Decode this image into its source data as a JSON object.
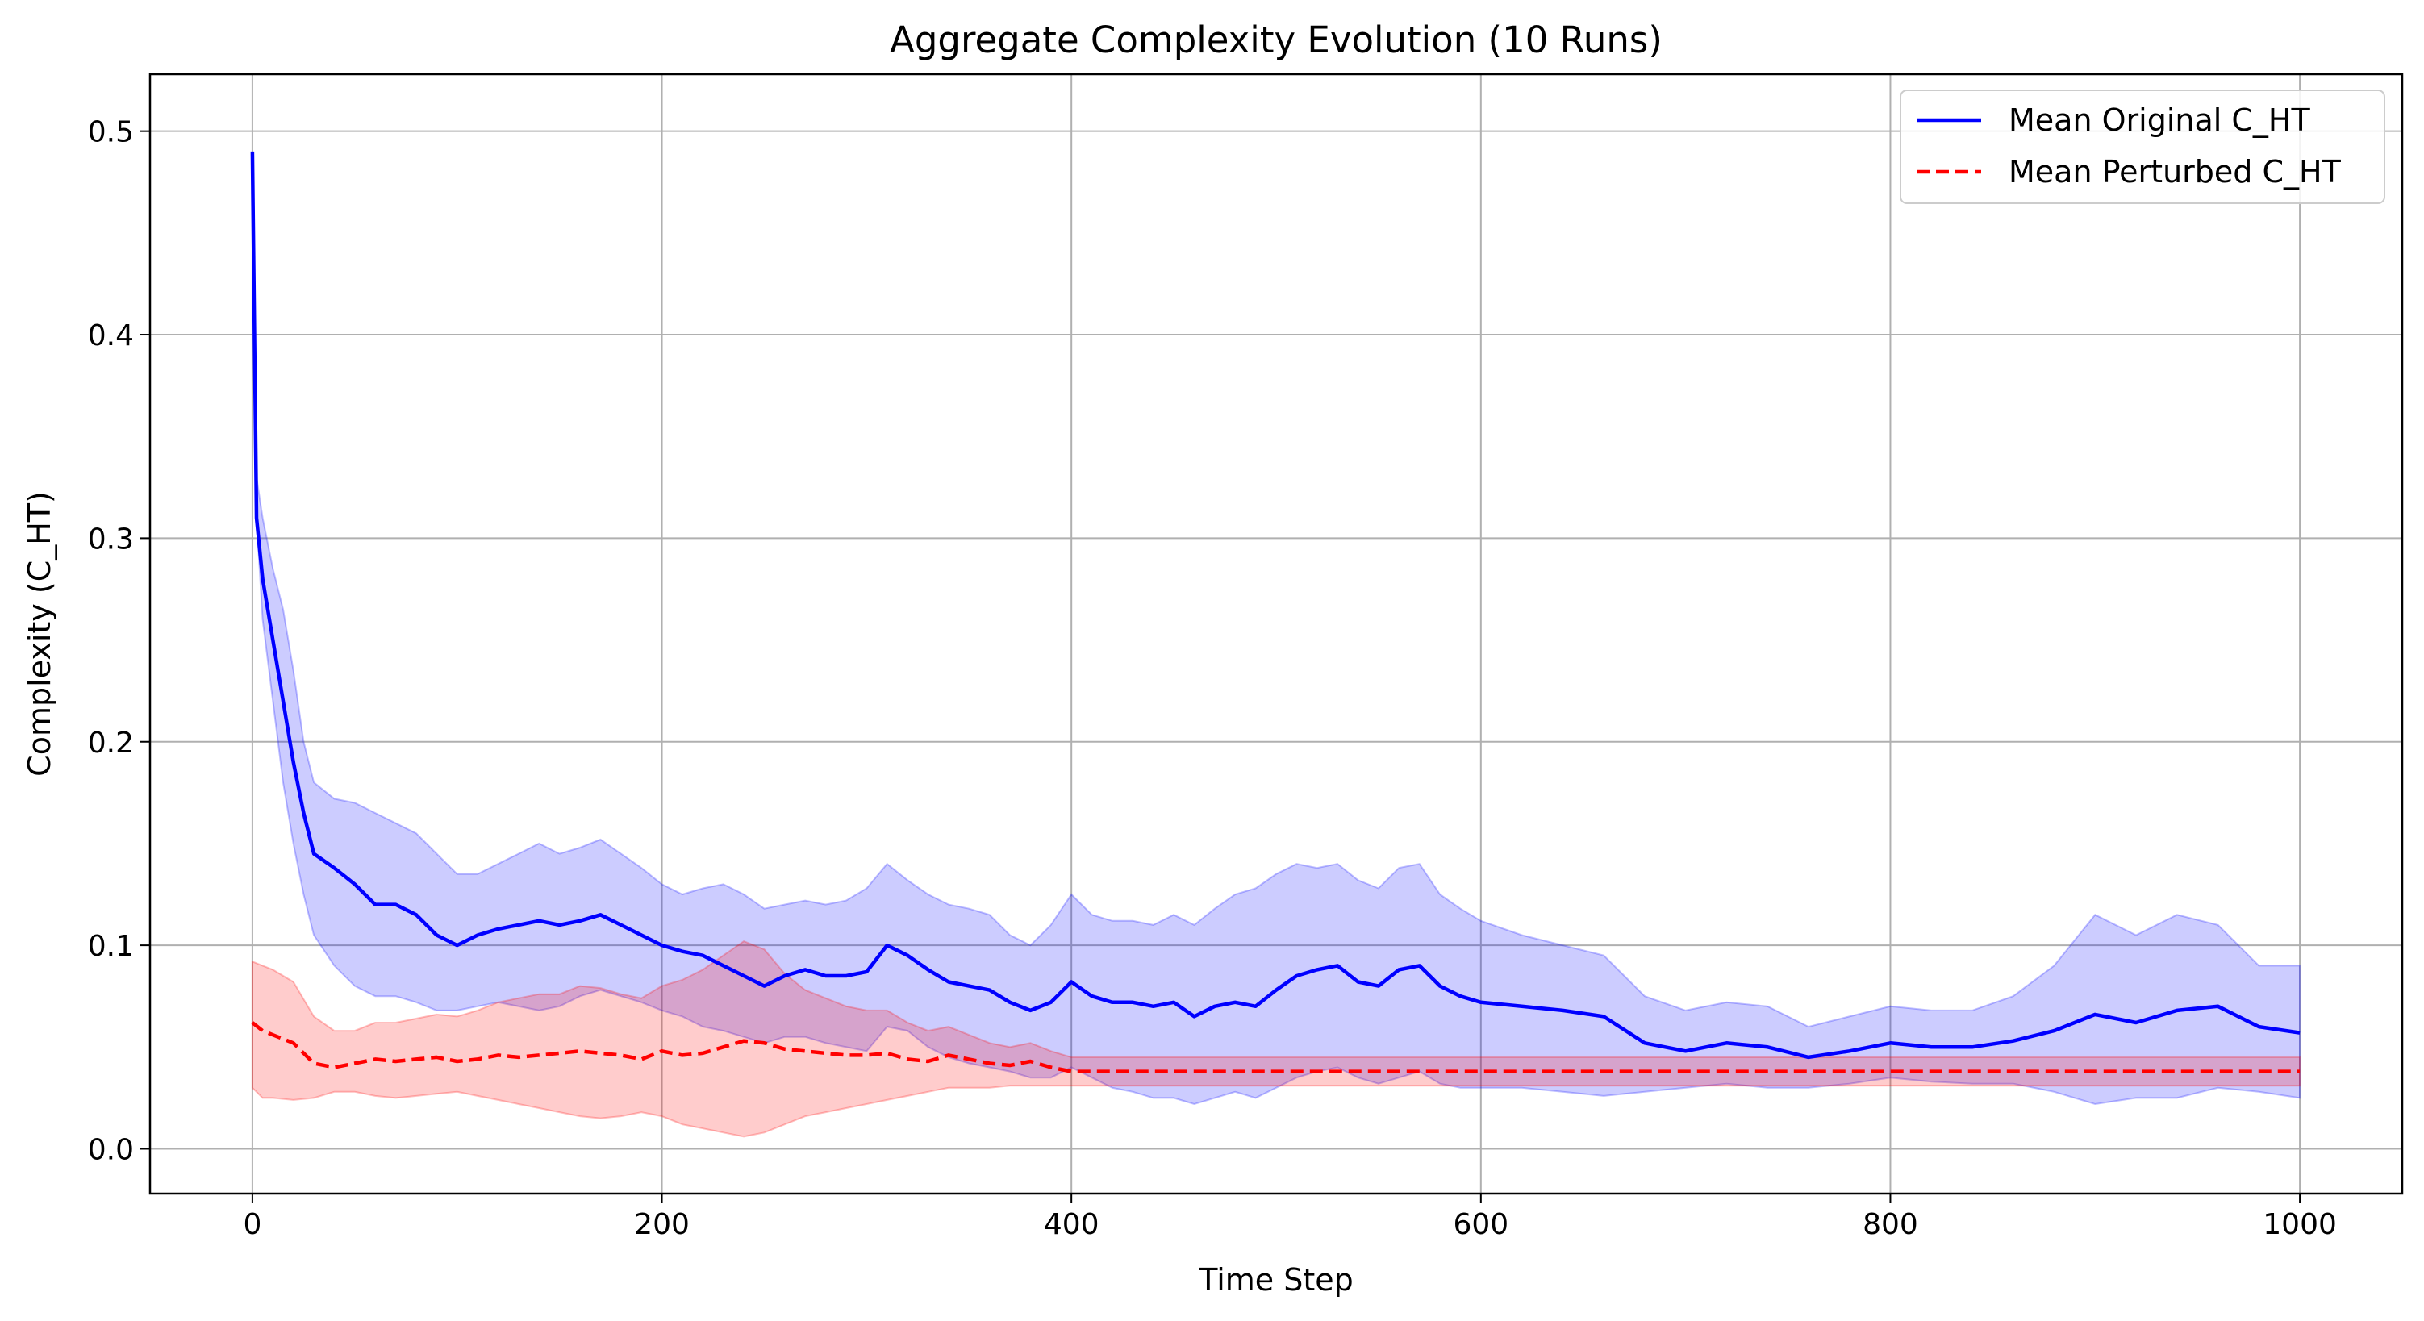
{
  "chart_data": {
    "type": "line",
    "title": "Aggregate Complexity Evolution (10 Runs)",
    "xlabel": "Time Step",
    "ylabel": "Complexity (C_HT)",
    "xlim": [
      -50,
      1050
    ],
    "ylim": [
      -0.022,
      0.528
    ],
    "x_ticks": [
      0,
      200,
      400,
      600,
      800,
      1000
    ],
    "y_ticks": [
      0.0,
      0.1,
      0.2,
      0.3,
      0.4,
      0.5
    ],
    "x_tick_labels": [
      "0",
      "200",
      "400",
      "600",
      "800",
      "1000"
    ],
    "y_tick_labels": [
      "0.0",
      "0.1",
      "0.2",
      "0.3",
      "0.4",
      "0.5"
    ],
    "grid": true,
    "legend_position": "top-right",
    "series": [
      {
        "name": "Mean Original C_HT",
        "color": "#0000ff",
        "style": "solid",
        "x": [
          0,
          2,
          5,
          10,
          15,
          20,
          25,
          30,
          40,
          50,
          60,
          70,
          80,
          90,
          100,
          110,
          120,
          130,
          140,
          150,
          160,
          170,
          180,
          190,
          200,
          210,
          220,
          230,
          240,
          250,
          260,
          270,
          280,
          290,
          300,
          310,
          320,
          330,
          340,
          350,
          360,
          370,
          380,
          390,
          400,
          410,
          420,
          430,
          440,
          450,
          460,
          470,
          480,
          490,
          500,
          510,
          520,
          530,
          540,
          550,
          560,
          570,
          580,
          590,
          600,
          620,
          640,
          660,
          680,
          700,
          720,
          740,
          760,
          780,
          800,
          820,
          840,
          860,
          880,
          900,
          920,
          940,
          960,
          980,
          1000
        ],
        "mean": [
          0.49,
          0.31,
          0.28,
          0.25,
          0.22,
          0.19,
          0.165,
          0.145,
          0.138,
          0.13,
          0.12,
          0.12,
          0.115,
          0.105,
          0.1,
          0.105,
          0.108,
          0.11,
          0.112,
          0.11,
          0.112,
          0.115,
          0.11,
          0.105,
          0.1,
          0.097,
          0.095,
          0.09,
          0.085,
          0.08,
          0.085,
          0.088,
          0.085,
          0.085,
          0.087,
          0.1,
          0.095,
          0.088,
          0.082,
          0.08,
          0.078,
          0.072,
          0.068,
          0.072,
          0.082,
          0.075,
          0.072,
          0.072,
          0.07,
          0.072,
          0.065,
          0.07,
          0.072,
          0.07,
          0.078,
          0.085,
          0.088,
          0.09,
          0.082,
          0.08,
          0.088,
          0.09,
          0.08,
          0.075,
          0.072,
          0.07,
          0.068,
          0.065,
          0.052,
          0.048,
          0.052,
          0.05,
          0.045,
          0.048,
          0.052,
          0.05,
          0.05,
          0.053,
          0.058,
          0.066,
          0.062,
          0.068,
          0.07,
          0.06,
          0.057
        ],
        "lower": [
          0.49,
          0.31,
          0.26,
          0.22,
          0.18,
          0.15,
          0.125,
          0.105,
          0.09,
          0.08,
          0.075,
          0.075,
          0.072,
          0.068,
          0.068,
          0.07,
          0.072,
          0.07,
          0.068,
          0.07,
          0.075,
          0.078,
          0.075,
          0.072,
          0.068,
          0.065,
          0.06,
          0.058,
          0.055,
          0.052,
          0.055,
          0.055,
          0.052,
          0.05,
          0.048,
          0.06,
          0.058,
          0.05,
          0.045,
          0.042,
          0.04,
          0.038,
          0.035,
          0.035,
          0.04,
          0.035,
          0.03,
          0.028,
          0.025,
          0.025,
          0.022,
          0.025,
          0.028,
          0.025,
          0.03,
          0.035,
          0.038,
          0.04,
          0.035,
          0.032,
          0.035,
          0.038,
          0.032,
          0.03,
          0.03,
          0.03,
          0.028,
          0.026,
          0.028,
          0.03,
          0.032,
          0.03,
          0.03,
          0.032,
          0.035,
          0.033,
          0.032,
          0.032,
          0.028,
          0.022,
          0.025,
          0.025,
          0.03,
          0.028,
          0.025
        ],
        "upper": [
          0.49,
          0.33,
          0.31,
          0.285,
          0.265,
          0.235,
          0.2,
          0.18,
          0.172,
          0.17,
          0.165,
          0.16,
          0.155,
          0.145,
          0.135,
          0.135,
          0.14,
          0.145,
          0.15,
          0.145,
          0.148,
          0.152,
          0.145,
          0.138,
          0.13,
          0.125,
          0.128,
          0.13,
          0.125,
          0.118,
          0.12,
          0.122,
          0.12,
          0.122,
          0.128,
          0.14,
          0.132,
          0.125,
          0.12,
          0.118,
          0.115,
          0.105,
          0.1,
          0.11,
          0.125,
          0.115,
          0.112,
          0.112,
          0.11,
          0.115,
          0.11,
          0.118,
          0.125,
          0.128,
          0.135,
          0.14,
          0.138,
          0.14,
          0.132,
          0.128,
          0.138,
          0.14,
          0.125,
          0.118,
          0.112,
          0.105,
          0.1,
          0.095,
          0.075,
          0.068,
          0.072,
          0.07,
          0.06,
          0.065,
          0.07,
          0.068,
          0.068,
          0.075,
          0.09,
          0.115,
          0.105,
          0.115,
          0.11,
          0.09,
          0.09
        ]
      },
      {
        "name": "Mean Perturbed C_HT",
        "color": "#ff0000",
        "style": "dashed",
        "x": [
          0,
          5,
          10,
          20,
          30,
          40,
          50,
          60,
          70,
          80,
          90,
          100,
          110,
          120,
          130,
          140,
          150,
          160,
          170,
          180,
          190,
          200,
          210,
          220,
          230,
          240,
          250,
          260,
          270,
          280,
          290,
          300,
          310,
          320,
          330,
          340,
          350,
          360,
          370,
          380,
          390,
          400,
          450,
          500,
          550,
          600,
          650,
          700,
          750,
          800,
          850,
          900,
          950,
          1000
        ],
        "mean": [
          0.062,
          0.058,
          0.056,
          0.052,
          0.042,
          0.04,
          0.042,
          0.044,
          0.043,
          0.044,
          0.045,
          0.043,
          0.044,
          0.046,
          0.045,
          0.046,
          0.047,
          0.048,
          0.047,
          0.046,
          0.044,
          0.048,
          0.046,
          0.047,
          0.05,
          0.053,
          0.052,
          0.049,
          0.048,
          0.047,
          0.046,
          0.046,
          0.047,
          0.044,
          0.043,
          0.046,
          0.044,
          0.042,
          0.041,
          0.043,
          0.04,
          0.038,
          0.038,
          0.038,
          0.038,
          0.038,
          0.038,
          0.038,
          0.038,
          0.038,
          0.038,
          0.038,
          0.038,
          0.038
        ],
        "lower": [
          0.03,
          0.025,
          0.025,
          0.024,
          0.025,
          0.028,
          0.028,
          0.026,
          0.025,
          0.026,
          0.027,
          0.028,
          0.026,
          0.024,
          0.022,
          0.02,
          0.018,
          0.016,
          0.015,
          0.016,
          0.018,
          0.016,
          0.012,
          0.01,
          0.008,
          0.006,
          0.008,
          0.012,
          0.016,
          0.018,
          0.02,
          0.022,
          0.024,
          0.026,
          0.028,
          0.03,
          0.03,
          0.03,
          0.031,
          0.031,
          0.031,
          0.031,
          0.031,
          0.031,
          0.031,
          0.031,
          0.031,
          0.031,
          0.031,
          0.031,
          0.031,
          0.031,
          0.031,
          0.031
        ],
        "upper": [
          0.092,
          0.09,
          0.088,
          0.082,
          0.065,
          0.058,
          0.058,
          0.062,
          0.062,
          0.064,
          0.066,
          0.065,
          0.068,
          0.072,
          0.074,
          0.076,
          0.076,
          0.08,
          0.079,
          0.076,
          0.074,
          0.08,
          0.083,
          0.088,
          0.095,
          0.102,
          0.098,
          0.086,
          0.078,
          0.074,
          0.07,
          0.068,
          0.068,
          0.062,
          0.058,
          0.06,
          0.056,
          0.052,
          0.05,
          0.052,
          0.048,
          0.045,
          0.045,
          0.045,
          0.045,
          0.045,
          0.045,
          0.045,
          0.045,
          0.045,
          0.045,
          0.045,
          0.045,
          0.045
        ]
      }
    ]
  }
}
